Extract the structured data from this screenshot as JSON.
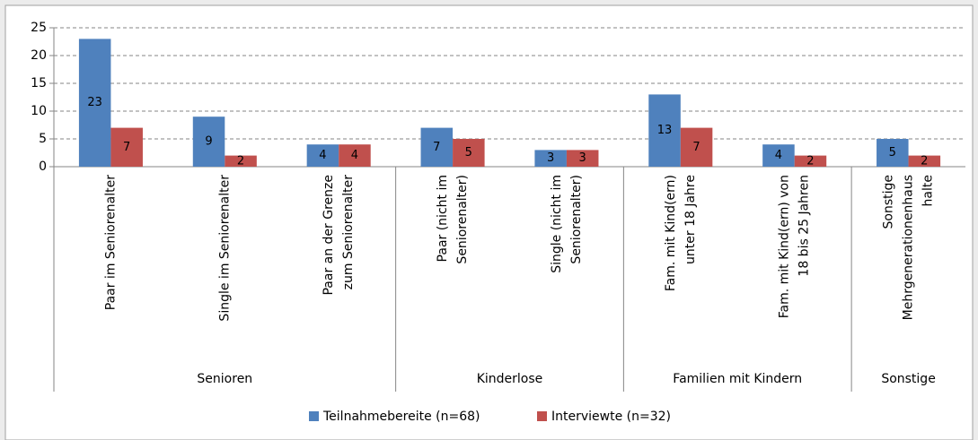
{
  "chart_data": {
    "type": "bar",
    "groups": [
      {
        "name": "Senioren",
        "categories": [
          "Paar im Seniorenalter",
          "Single im Seniorenalter",
          "Paar an der Grenze\nzum Seniorenalter"
        ]
      },
      {
        "name": "Kinderlose",
        "categories": [
          "Paar (nicht im\nSeniorenalter)",
          "Single (nicht im\nSeniorenalter)"
        ]
      },
      {
        "name": "Familien mit Kindern",
        "categories": [
          "Fam. mit Kind(ern)\nunter 18 Jahre",
          "Fam. mit Kind(ern) von\n18 bis 25 Jahren"
        ]
      },
      {
        "name": "Sonstige",
        "categories": [
          "Sonstige\nMehrgenerationenhaus\nhalte"
        ]
      }
    ],
    "series": [
      {
        "name": "Teilnahmebereite (n=68)",
        "color": "#4f81bd",
        "values": [
          23,
          9,
          4,
          7,
          3,
          13,
          4,
          5
        ]
      },
      {
        "name": "Interviewte (n=32)",
        "color": "#c0504d",
        "values": [
          7,
          2,
          4,
          5,
          3,
          7,
          2,
          2
        ]
      }
    ],
    "ylim": [
      0,
      25
    ],
    "yticks": [
      0,
      5,
      10,
      15,
      20,
      25
    ],
    "grid": true,
    "legend": "bottom"
  }
}
